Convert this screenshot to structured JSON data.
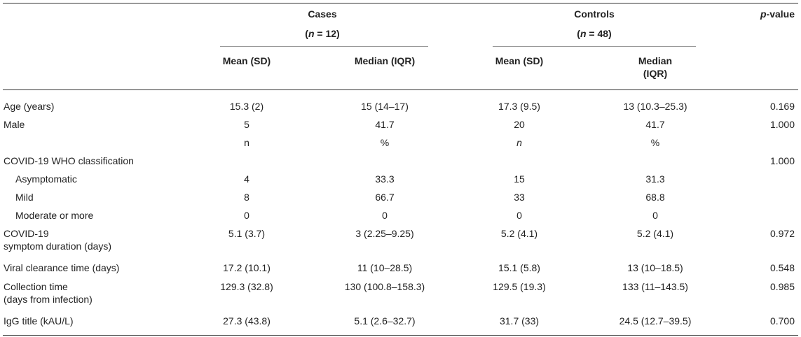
{
  "header": {
    "cases": {
      "label": "Cases",
      "n_paren_open": "(",
      "n_letter": "n",
      "n_rest": " = 12)"
    },
    "controls": {
      "label": "Controls",
      "n_paren_open": "(",
      "n_letter": "n",
      "n_rest": " = 48)"
    },
    "pvalue": {
      "italic_part": "p",
      "rest": "-value"
    },
    "subcolumns": {
      "cases_mean": "Mean (SD)",
      "cases_median": "Median (IQR)",
      "controls_mean": "Mean (SD)",
      "controls_median_line1": "Median",
      "controls_median_line2": "(IQR)"
    }
  },
  "rows": [
    {
      "label": "Age (years)",
      "cases_mean": "15.3 (2)",
      "cases_median": "15 (14–17)",
      "controls_mean": "17.3 (9.5)",
      "controls_median": "13 (10.3–25.3)",
      "p": "0.169"
    },
    {
      "label": "Male",
      "cases_mean": "5",
      "cases_median": "41.7",
      "controls_mean": "20",
      "controls_median": "41.7",
      "p": "1.000"
    },
    {
      "label": "",
      "cases_mean": "n",
      "cases_median": "%",
      "controls_mean": "n",
      "controls_median": "%",
      "p": ""
    },
    {
      "label": "COVID-19 WHO classification",
      "cases_mean": "",
      "cases_median": "",
      "controls_mean": "",
      "controls_median": "",
      "p": "1.000"
    },
    {
      "label": "Asymptomatic",
      "cases_mean": "4",
      "cases_median": "33.3",
      "controls_mean": "15",
      "controls_median": "31.3",
      "p": ""
    },
    {
      "label": "Mild",
      "cases_mean": "8",
      "cases_median": "66.7",
      "controls_mean": "33",
      "controls_median": "68.8",
      "p": ""
    },
    {
      "label": "Moderate or more",
      "cases_mean": "0",
      "cases_median": "0",
      "controls_mean": "0",
      "controls_median": "0",
      "p": ""
    },
    {
      "label": "COVID-19",
      "label2": "symptom duration (days)",
      "cases_mean": "5.1 (3.7)",
      "cases_median": "3 (2.25–9.25)",
      "controls_mean": "5.2 (4.1)",
      "controls_median": "5.2 (4.1)",
      "p": "0.972"
    },
    {
      "label": "Viral clearance time (days)",
      "cases_mean": "17.2 (10.1)",
      "cases_median": "11 (10–28.5)",
      "controls_mean": "15.1 (5.8)",
      "controls_median": "13 (10–18.5)",
      "p": "0.548"
    },
    {
      "label": "Collection time",
      "label2": "(days from infection)",
      "cases_mean": "129.3 (32.8)",
      "cases_median": "130 (100.8–158.3)",
      "controls_mean": "129.5 (19.3)",
      "controls_median": "133 (11–143.5)",
      "p": "0.985"
    },
    {
      "label": "IgG title (kAU/L)",
      "cases_mean": "27.3 (43.8)",
      "cases_median": "5.1 (2.6–32.7)",
      "controls_mean": "31.7 (33)",
      "controls_median": "24.5 (12.7–39.5)",
      "p": "0.700"
    }
  ]
}
